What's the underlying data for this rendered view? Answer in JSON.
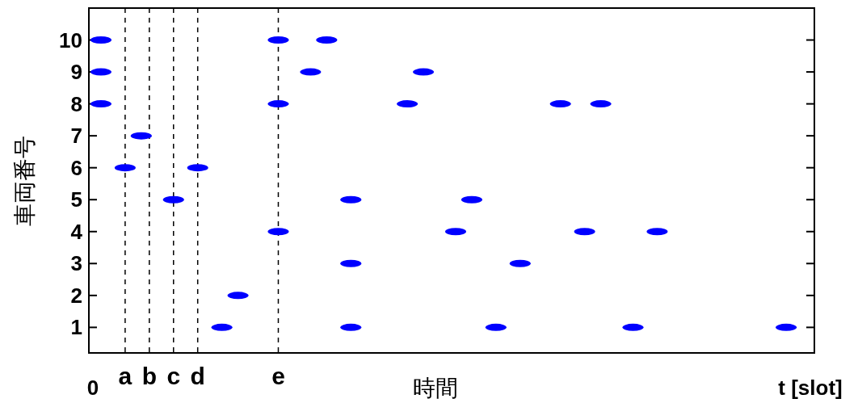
{
  "chart_data": {
    "type": "scatter",
    "xlabel": "時間",
    "ylabel": "車両番号",
    "ylim": [
      0.2,
      11
    ],
    "yticks": [
      1,
      2,
      3,
      4,
      5,
      6,
      7,
      8,
      9,
      10
    ],
    "categories": [
      "0",
      null,
      null,
      null,
      "a",
      null,
      null,
      "b",
      null,
      null,
      "c",
      null,
      null,
      "d",
      null,
      null,
      null,
      null,
      null,
      null,
      null,
      null,
      null,
      "e",
      null,
      null,
      null,
      null,
      null,
      null,
      null,
      null,
      null,
      null,
      null,
      null,
      null,
      null,
      null,
      null,
      null,
      null,
      null,
      null,
      null,
      null,
      null,
      null,
      null,
      null,
      null,
      null,
      null,
      null,
      null,
      null,
      null,
      null,
      null,
      null,
      null,
      null,
      null,
      null,
      null,
      null,
      null,
      null,
      null,
      null,
      null,
      null,
      null,
      null,
      null,
      null,
      null,
      null,
      null,
      null,
      null,
      null,
      null,
      null,
      null,
      null,
      null,
      null,
      null,
      "t [slot]"
    ],
    "series": [
      {
        "color": "#0000ff",
        "values": [
          null,
          10,
          null,
          null,
          6,
          null,
          7,
          null,
          null,
          null,
          5,
          null,
          null,
          6,
          null,
          null,
          1,
          null,
          2,
          null,
          null,
          null,
          null,
          10,
          null,
          null,
          null,
          9,
          null,
          10,
          null,
          null,
          5,
          null,
          null,
          null,
          null,
          null,
          null,
          8,
          null,
          9,
          null,
          null,
          null,
          4,
          null,
          5,
          null,
          null,
          1,
          null,
          null,
          3,
          null,
          null,
          null,
          null,
          8,
          null,
          null,
          4,
          null,
          8,
          null,
          null,
          null,
          1,
          null,
          null,
          4,
          null,
          null,
          null,
          null,
          null,
          null,
          null,
          null,
          null,
          null,
          null,
          null,
          null,
          null,
          null,
          1,
          null,
          null,
          null
        ]
      },
      {
        "color": "#0000ff",
        "values": [
          null,
          9,
          null,
          null,
          null,
          null,
          null,
          null,
          null,
          null,
          null,
          null,
          null,
          null,
          null,
          null,
          null,
          null,
          null,
          null,
          null,
          null,
          null,
          8,
          null,
          null,
          null,
          null,
          null,
          null,
          null,
          null,
          3,
          null,
          null,
          null,
          null,
          null,
          null,
          null,
          null,
          null,
          null,
          null,
          null,
          null,
          null,
          null,
          null,
          null,
          null,
          null,
          null,
          null,
          null,
          null,
          null,
          null,
          null,
          null,
          null,
          null,
          null,
          null,
          null,
          null,
          null,
          null,
          null,
          null,
          null,
          null,
          null,
          null,
          null,
          null,
          null,
          null,
          null,
          null,
          null,
          null,
          null,
          null,
          null,
          null,
          null,
          null,
          null,
          null
        ]
      },
      {
        "color": "#0000ff",
        "values": [
          null,
          8,
          null,
          null,
          null,
          null,
          null,
          null,
          null,
          null,
          null,
          null,
          null,
          null,
          null,
          null,
          null,
          null,
          null,
          null,
          null,
          null,
          null,
          4,
          null,
          null,
          null,
          null,
          null,
          null,
          null,
          null,
          1,
          null,
          null,
          null,
          null,
          null,
          null,
          null,
          null,
          null,
          null,
          null,
          null,
          null,
          null,
          null,
          null,
          null,
          null,
          null,
          null,
          null,
          null,
          null,
          null,
          null,
          null,
          null,
          null,
          null,
          null,
          null,
          null,
          null,
          null,
          null,
          null,
          null,
          null,
          null,
          null,
          null,
          null,
          null,
          null,
          null,
          null,
          null,
          null,
          null,
          null,
          null,
          null,
          null,
          null,
          null,
          null,
          null
        ]
      }
    ],
    "ref_lines": [
      {
        "axis": "x",
        "value": "a",
        "color": "#000000",
        "line_style": "dashed"
      },
      {
        "axis": "x",
        "value": "b",
        "color": "#000000",
        "line_style": "dashed"
      },
      {
        "axis": "x",
        "value": "c",
        "color": "#000000",
        "line_style": "dashed"
      },
      {
        "axis": "x",
        "value": "d",
        "color": "#000000",
        "line_style": "dashed"
      },
      {
        "axis": "x",
        "value": "e",
        "color": "#000000",
        "line_style": "dashed"
      }
    ]
  }
}
